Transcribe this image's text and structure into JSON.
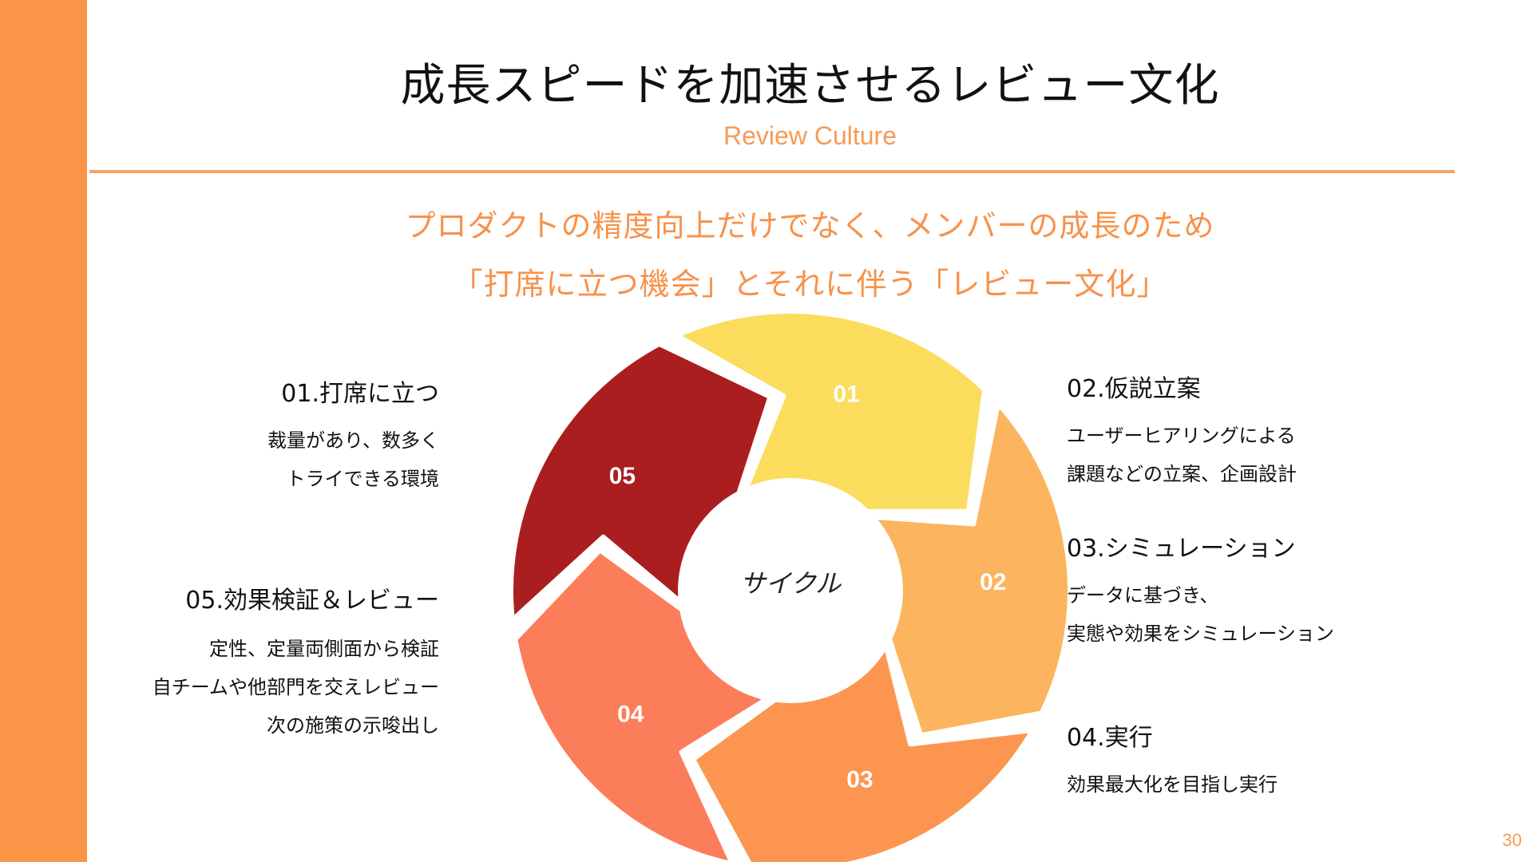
{
  "slide": {
    "title": "成長スピードを加速させるレビュー文化",
    "subtitle": "Review Culture",
    "lead_line1": "プロダクトの精度向上だけでなく、メンバーの成長のため",
    "lead_line2": "「打席に立つ機会」とそれに伴う「レビュー文化」",
    "page_number": "30"
  },
  "colors": {
    "accent": "#fb9548",
    "segment_01": "#fbdc5d",
    "segment_02": "#fcb45e",
    "segment_03": "#fc954f",
    "segment_04": "#fc7d5a",
    "segment_05": "#aa1e20"
  },
  "cycle": {
    "center_label": "サイクル",
    "segments": [
      {
        "label": "01",
        "color": "#fbdc5d"
      },
      {
        "label": "02",
        "color": "#fcb45e"
      },
      {
        "label": "03",
        "color": "#fc954f"
      },
      {
        "label": "04",
        "color": "#fc7d5a"
      },
      {
        "label": "05",
        "color": "#aa1e20"
      }
    ]
  },
  "steps": {
    "s01": {
      "title": "01.打席に立つ",
      "lines": [
        "裁量があり、数多く",
        "トライできる環境"
      ]
    },
    "s02": {
      "title": "02.仮説立案",
      "lines": [
        "ユーザーヒアリングによる",
        "課題などの立案、企画設計"
      ]
    },
    "s03": {
      "title": "03.シミュレーション",
      "lines": [
        "データに基づき、",
        "実態や効果をシミュレーション"
      ]
    },
    "s04": {
      "title": "04.実行",
      "lines": [
        "効果最大化を目指し実行"
      ]
    },
    "s05": {
      "title": "05.効果検証＆レビュー",
      "lines": [
        "定性、定量両側面から検証",
        "自チームや他部門を交えレビュー",
        "次の施策の示唆出し"
      ]
    }
  }
}
